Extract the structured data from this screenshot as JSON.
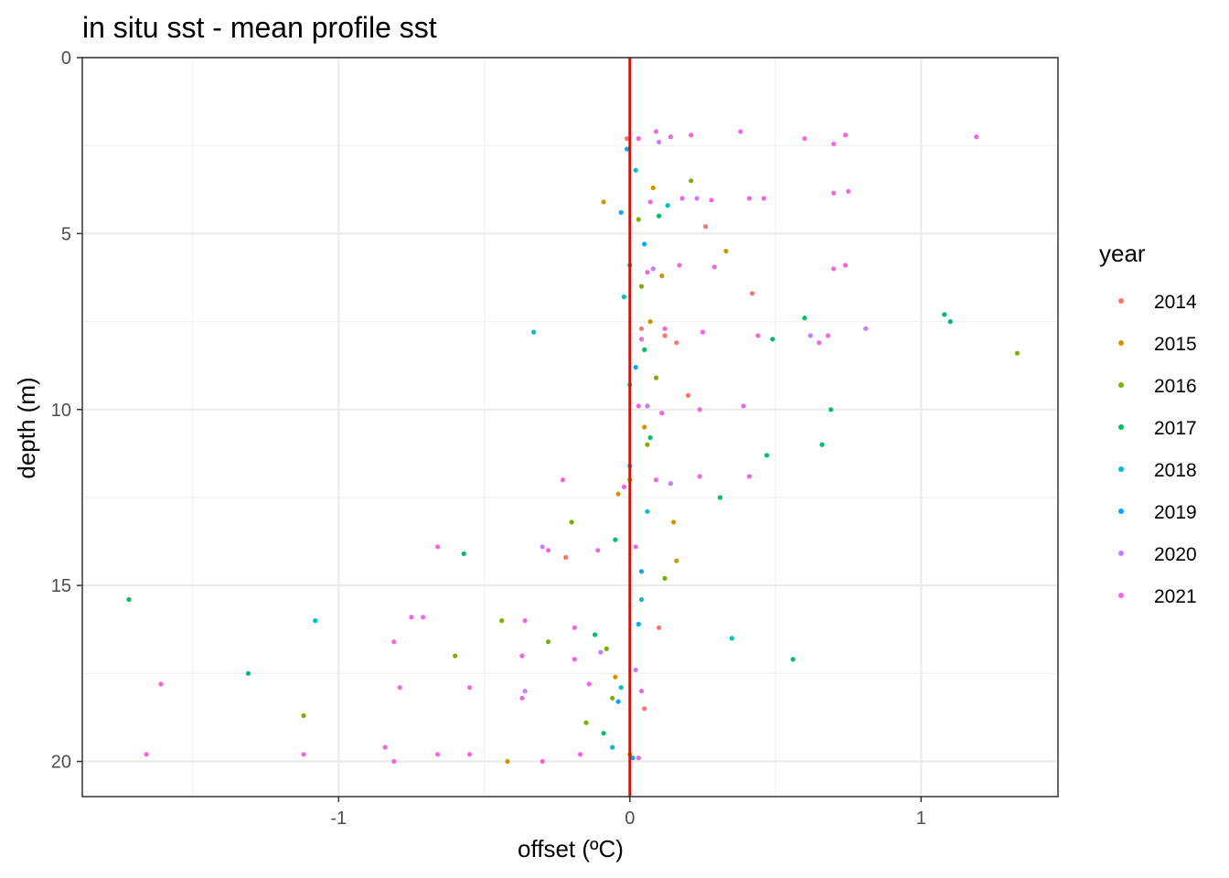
{
  "chart_data": {
    "type": "scatter",
    "title": "in situ sst - mean profile sst",
    "xlabel": "offset (ºC)",
    "ylabel": "depth (m)",
    "xlim": [
      -1.88,
      1.47
    ],
    "ylim": [
      0,
      21
    ],
    "y_reversed": true,
    "x_ticks": [
      -1,
      0,
      1
    ],
    "x_tick_labels": [
      "-1",
      "0",
      "1"
    ],
    "y_ticks": [
      0,
      5,
      10,
      15,
      20
    ],
    "y_tick_labels": [
      "0",
      "5",
      "10",
      "15",
      "20"
    ],
    "grid": true,
    "reference_line": {
      "x": 0,
      "color": "#ff0000"
    },
    "legend": {
      "title": "year",
      "position": "right"
    },
    "series": [
      {
        "name": "2014",
        "color": "#F8766D",
        "points": [
          [
            0.26,
            4.8
          ],
          [
            0.42,
            6.7
          ],
          [
            0.12,
            7.9
          ],
          [
            0.16,
            8.1
          ],
          [
            0.2,
            9.6
          ],
          [
            -0.22,
            14.2
          ],
          [
            0.1,
            16.2
          ],
          [
            0.05,
            18.5
          ],
          [
            -0.01,
            2.3
          ],
          [
            0.04,
            7.7
          ]
        ]
      },
      {
        "name": "2015",
        "color": "#CD9600",
        "points": [
          [
            0.33,
            5.5
          ],
          [
            -0.09,
            4.1
          ],
          [
            0.07,
            7.5
          ],
          [
            0.16,
            14.3
          ],
          [
            0.15,
            13.2
          ],
          [
            -0.42,
            20.0
          ],
          [
            0.05,
            10.5
          ],
          [
            -0.05,
            17.6
          ],
          [
            0.11,
            6.2
          ],
          [
            0.0,
            19.8
          ],
          [
            0.08,
            3.7
          ],
          [
            -0.04,
            12.4
          ]
        ]
      },
      {
        "name": "2016",
        "color": "#7CAE00",
        "points": [
          [
            1.33,
            8.4
          ],
          [
            0.21,
            3.5
          ],
          [
            -1.12,
            18.7
          ],
          [
            -0.44,
            16.0
          ],
          [
            -0.6,
            17.0
          ],
          [
            0.0,
            12.0
          ],
          [
            -0.2,
            13.2
          ],
          [
            0.12,
            14.8
          ],
          [
            0.06,
            11.0
          ],
          [
            -0.06,
            18.2
          ],
          [
            0.04,
            6.5
          ],
          [
            -0.08,
            16.8
          ],
          [
            -0.28,
            16.6
          ],
          [
            0.09,
            9.1
          ],
          [
            -0.15,
            18.9
          ],
          [
            0.03,
            4.6
          ]
        ]
      },
      {
        "name": "2017",
        "color": "#00BE67",
        "points": [
          [
            -1.72,
            15.4
          ],
          [
            -1.31,
            17.5
          ],
          [
            -0.57,
            14.1
          ],
          [
            0.56,
            17.1
          ],
          [
            0.49,
            8.0
          ],
          [
            0.6,
            7.4
          ],
          [
            0.66,
            11.0
          ],
          [
            0.69,
            10.0
          ],
          [
            1.08,
            7.3
          ],
          [
            1.1,
            7.5
          ],
          [
            0.47,
            11.3
          ],
          [
            0.31,
            12.5
          ],
          [
            -0.12,
            16.4
          ],
          [
            0.0,
            5.9
          ],
          [
            -0.09,
            19.2
          ],
          [
            0.05,
            8.3
          ],
          [
            0.1,
            4.5
          ],
          [
            -0.05,
            13.7
          ],
          [
            0.07,
            10.8
          ]
        ]
      },
      {
        "name": "2018",
        "color": "#00BFC4",
        "points": [
          [
            -1.08,
            16.0
          ],
          [
            -0.33,
            7.8
          ],
          [
            0.35,
            16.5
          ],
          [
            0.13,
            4.2
          ],
          [
            -0.03,
            17.9
          ],
          [
            0.04,
            15.4
          ],
          [
            0.0,
            9.3
          ],
          [
            0.06,
            12.9
          ],
          [
            -0.02,
            6.8
          ],
          [
            0.02,
            3.2
          ],
          [
            -0.06,
            19.6
          ]
        ]
      },
      {
        "name": "2019",
        "color": "#00A9FF",
        "points": [
          [
            0.05,
            5.3
          ],
          [
            -0.03,
            4.4
          ],
          [
            0.0,
            11.6
          ],
          [
            0.03,
            16.1
          ],
          [
            -0.04,
            18.3
          ],
          [
            0.02,
            8.8
          ],
          [
            0.01,
            19.9
          ],
          [
            -0.01,
            2.6
          ],
          [
            0.04,
            14.6
          ]
        ]
      },
      {
        "name": "2020",
        "color": "#C77CFF",
        "points": [
          [
            0.81,
            7.7
          ],
          [
            0.62,
            7.9
          ],
          [
            0.23,
            4.0
          ],
          [
            -0.3,
            13.9
          ],
          [
            -0.36,
            18.0
          ],
          [
            0.14,
            12.1
          ],
          [
            0.1,
            2.4
          ],
          [
            0.06,
            9.9
          ],
          [
            -0.1,
            16.9
          ],
          [
            0.08,
            6.0
          ],
          [
            0.02,
            17.4
          ]
        ]
      },
      {
        "name": "2021",
        "color": "#F564E3",
        "points": [
          [
            1.19,
            2.25
          ],
          [
            0.74,
            2.2
          ],
          [
            0.7,
            2.45
          ],
          [
            0.6,
            2.3
          ],
          [
            0.38,
            2.1
          ],
          [
            0.21,
            2.2
          ],
          [
            0.14,
            2.25
          ],
          [
            0.09,
            2.1
          ],
          [
            0.03,
            2.3
          ],
          [
            0.7,
            3.85
          ],
          [
            0.75,
            3.8
          ],
          [
            0.46,
            4.0
          ],
          [
            0.41,
            4.0
          ],
          [
            0.28,
            4.05
          ],
          [
            0.18,
            4.0
          ],
          [
            0.07,
            4.1
          ],
          [
            0.74,
            5.9
          ],
          [
            0.7,
            6.0
          ],
          [
            0.29,
            5.95
          ],
          [
            0.17,
            5.9
          ],
          [
            0.06,
            6.1
          ],
          [
            0.68,
            7.9
          ],
          [
            0.65,
            8.1
          ],
          [
            0.44,
            7.9
          ],
          [
            0.25,
            7.8
          ],
          [
            0.12,
            7.7
          ],
          [
            0.04,
            8.0
          ],
          [
            0.39,
            9.9
          ],
          [
            0.24,
            10.0
          ],
          [
            0.11,
            10.1
          ],
          [
            0.03,
            9.9
          ],
          [
            0.41,
            11.9
          ],
          [
            0.24,
            11.9
          ],
          [
            0.09,
            12.0
          ],
          [
            -0.23,
            12.0
          ],
          [
            -0.02,
            12.2
          ],
          [
            -0.66,
            13.9
          ],
          [
            -0.28,
            14.0
          ],
          [
            -0.11,
            14.0
          ],
          [
            0.02,
            13.9
          ],
          [
            -0.75,
            15.9
          ],
          [
            -0.71,
            15.9
          ],
          [
            -0.36,
            16.0
          ],
          [
            -0.19,
            16.2
          ],
          [
            -0.81,
            16.6
          ],
          [
            -0.37,
            17.0
          ],
          [
            -0.19,
            17.1
          ],
          [
            -1.61,
            17.8
          ],
          [
            -0.79,
            17.9
          ],
          [
            -0.55,
            17.9
          ],
          [
            -0.37,
            18.2
          ],
          [
            -0.14,
            17.8
          ],
          [
            0.04,
            18.0
          ],
          [
            -1.66,
            19.8
          ],
          [
            -1.12,
            19.8
          ],
          [
            -0.84,
            19.6
          ],
          [
            -0.81,
            20.0
          ],
          [
            -0.66,
            19.8
          ],
          [
            -0.55,
            19.8
          ],
          [
            -0.3,
            20.0
          ],
          [
            -0.17,
            19.8
          ],
          [
            0.03,
            19.9
          ]
        ]
      }
    ]
  }
}
